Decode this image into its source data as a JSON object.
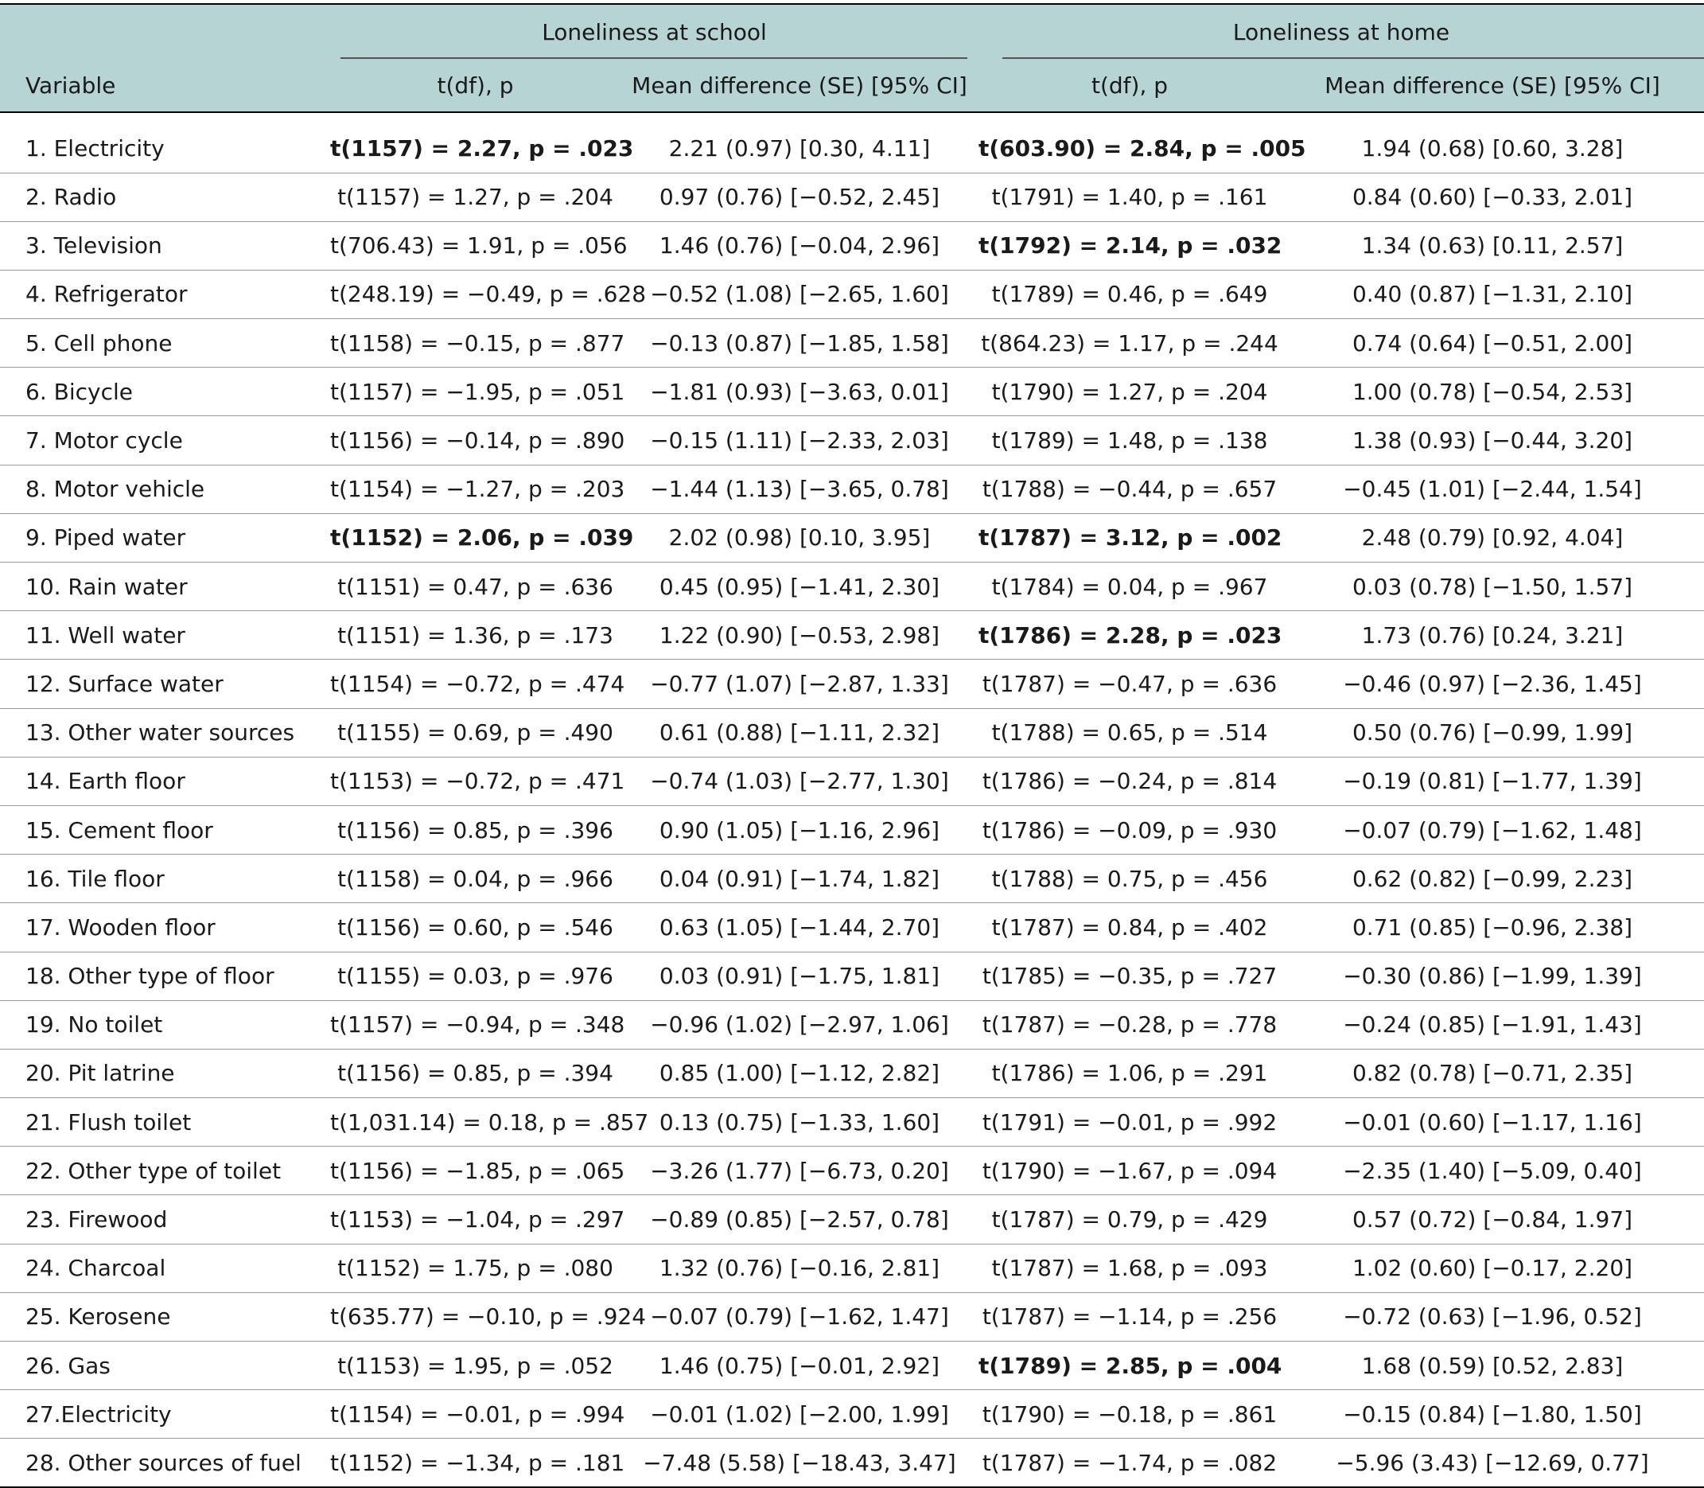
{
  "table": {
    "group_headers": {
      "school": "Loneliness at school",
      "home": "Loneliness at home"
    },
    "column_headers": {
      "variable": "Variable",
      "school_t": "t(df), p",
      "school_md": "Mean difference (SE) [95% CI]",
      "home_t": "t(df), p",
      "home_md": "Mean difference (SE) [95% CI]"
    },
    "rows": [
      {
        "variable": "1. Electricity",
        "school_t": "t(1157) = 2.27, p = .023",
        "school_md": "2.21 (0.97) [0.30, 4.11]",
        "home_t": "t(603.90) = 2.84, p = .005",
        "home_md": "1.94 (0.68) [0.60, 3.28]",
        "school_sig": true,
        "home_sig": true
      },
      {
        "variable": "2. Radio",
        "school_t": "t(1157) = 1.27, p = .204",
        "school_md": "0.97 (0.76) [−0.52, 2.45]",
        "home_t": "t(1791) = 1.40, p = .161",
        "home_md": "0.84 (0.60) [−0.33, 2.01]",
        "school_sig": false,
        "home_sig": false
      },
      {
        "variable": "3. Television",
        "school_t": "t(706.43) = 1.91, p = .056",
        "school_md": "1.46 (0.76) [−0.04, 2.96]",
        "home_t": "t(1792) = 2.14, p = .032",
        "home_md": "1.34 (0.63) [0.11, 2.57]",
        "school_sig": false,
        "home_sig": true
      },
      {
        "variable": "4. Refrigerator",
        "school_t": "t(248.19) = −0.49, p = .628",
        "school_md": "−0.52 (1.08) [−2.65, 1.60]",
        "home_t": "t(1789) = 0.46, p = .649",
        "home_md": "0.40 (0.87) [−1.31, 2.10]",
        "school_sig": false,
        "home_sig": false
      },
      {
        "variable": "5. Cell phone",
        "school_t": "t(1158) = −0.15, p = .877",
        "school_md": "−0.13 (0.87) [−1.85, 1.58]",
        "home_t": "t(864.23) = 1.17, p = .244",
        "home_md": "0.74 (0.64) [−0.51, 2.00]",
        "school_sig": false,
        "home_sig": false
      },
      {
        "variable": "6. Bicycle",
        "school_t": "t(1157) = −1.95, p = .051",
        "school_md": "−1.81 (0.93) [−3.63, 0.01]",
        "home_t": "t(1790) = 1.27, p = .204",
        "home_md": "1.00 (0.78) [−0.54, 2.53]",
        "school_sig": false,
        "home_sig": false
      },
      {
        "variable": "7. Motor cycle",
        "school_t": "t(1156) = −0.14, p = .890",
        "school_md": "−0.15 (1.11) [−2.33, 2.03]",
        "home_t": "t(1789) = 1.48, p = .138",
        "home_md": "1.38 (0.93) [−0.44, 3.20]",
        "school_sig": false,
        "home_sig": false
      },
      {
        "variable": "8. Motor vehicle",
        "school_t": "t(1154) = −1.27, p = .203",
        "school_md": "−1.44 (1.13) [−3.65, 0.78]",
        "home_t": "t(1788) = −0.44, p = .657",
        "home_md": "−0.45 (1.01) [−2.44, 1.54]",
        "school_sig": false,
        "home_sig": false
      },
      {
        "variable": "9. Piped water",
        "school_t": "t(1152) = 2.06, p = .039",
        "school_md": "2.02 (0.98) [0.10, 3.95]",
        "home_t": "t(1787) = 3.12, p = .002",
        "home_md": "2.48 (0.79) [0.92, 4.04]",
        "school_sig": true,
        "home_sig": true
      },
      {
        "variable": "10. Rain water",
        "school_t": "t(1151) = 0.47, p = .636",
        "school_md": "0.45 (0.95) [−1.41, 2.30]",
        "home_t": "t(1784) = 0.04, p = .967",
        "home_md": "0.03 (0.78) [−1.50, 1.57]",
        "school_sig": false,
        "home_sig": false
      },
      {
        "variable": "11. Well water",
        "school_t": "t(1151) = 1.36, p = .173",
        "school_md": "1.22 (0.90) [−0.53, 2.98]",
        "home_t": "t(1786) = 2.28, p = .023",
        "home_md": "1.73 (0.76) [0.24, 3.21]",
        "school_sig": false,
        "home_sig": true
      },
      {
        "variable": "12. Surface water",
        "school_t": "t(1154) = −0.72, p = .474",
        "school_md": "−0.77 (1.07) [−2.87, 1.33]",
        "home_t": "t(1787) = −0.47, p = .636",
        "home_md": "−0.46 (0.97) [−2.36, 1.45]",
        "school_sig": false,
        "home_sig": false
      },
      {
        "variable": "13. Other water sources",
        "school_t": "t(1155) = 0.69, p = .490",
        "school_md": "0.61 (0.88) [−1.11, 2.32]",
        "home_t": "t(1788) = 0.65, p = .514",
        "home_md": "0.50 (0.76) [−0.99, 1.99]",
        "school_sig": false,
        "home_sig": false
      },
      {
        "variable": "14. Earth floor",
        "school_t": "t(1153) = −0.72, p = .471",
        "school_md": "−0.74 (1.03) [−2.77, 1.30]",
        "home_t": "t(1786) = −0.24, p = .814",
        "home_md": "−0.19 (0.81) [−1.77, 1.39]",
        "school_sig": false,
        "home_sig": false
      },
      {
        "variable": "15. Cement floor",
        "school_t": "t(1156) = 0.85, p = .396",
        "school_md": "0.90 (1.05) [−1.16, 2.96]",
        "home_t": "t(1786) = −0.09, p = .930",
        "home_md": "−0.07 (0.79) [−1.62, 1.48]",
        "school_sig": false,
        "home_sig": false
      },
      {
        "variable": "16. Tile floor",
        "school_t": "t(1158) = 0.04, p = .966",
        "school_md": "0.04 (0.91) [−1.74, 1.82]",
        "home_t": "t(1788) = 0.75, p = .456",
        "home_md": "0.62 (0.82) [−0.99, 2.23]",
        "school_sig": false,
        "home_sig": false
      },
      {
        "variable": "17. Wooden floor",
        "school_t": "t(1156) = 0.60, p = .546",
        "school_md": "0.63 (1.05) [−1.44, 2.70]",
        "home_t": "t(1787) = 0.84, p = .402",
        "home_md": "0.71 (0.85) [−0.96, 2.38]",
        "school_sig": false,
        "home_sig": false
      },
      {
        "variable": "18. Other type of floor",
        "school_t": "t(1155) = 0.03, p = .976",
        "school_md": "0.03 (0.91) [−1.75, 1.81]",
        "home_t": "t(1785) = −0.35, p = .727",
        "home_md": "−0.30 (0.86) [−1.99, 1.39]",
        "school_sig": false,
        "home_sig": false
      },
      {
        "variable": "19. No toilet",
        "school_t": "t(1157) = −0.94, p = .348",
        "school_md": "−0.96 (1.02) [−2.97, 1.06]",
        "home_t": "t(1787) = −0.28, p = .778",
        "home_md": "−0.24 (0.85) [−1.91, 1.43]",
        "school_sig": false,
        "home_sig": false
      },
      {
        "variable": "20. Pit latrine",
        "school_t": "t(1156) = 0.85, p = .394",
        "school_md": "0.85 (1.00) [−1.12, 2.82]",
        "home_t": "t(1786) = 1.06, p = .291",
        "home_md": "0.82 (0.78) [−0.71, 2.35]",
        "school_sig": false,
        "home_sig": false
      },
      {
        "variable": "21. Flush toilet",
        "school_t": "t(1,031.14) = 0.18, p = .857",
        "school_md": "0.13 (0.75) [−1.33, 1.60]",
        "home_t": "t(1791) = −0.01, p = .992",
        "home_md": "−0.01 (0.60) [−1.17, 1.16]",
        "school_sig": false,
        "home_sig": false
      },
      {
        "variable": "22. Other type of toilet",
        "school_t": "t(1156) = −1.85, p = .065",
        "school_md": "−3.26 (1.77) [−6.73, 0.20]",
        "home_t": "t(1790) = −1.67, p = .094",
        "home_md": "−2.35 (1.40) [−5.09, 0.40]",
        "school_sig": false,
        "home_sig": false
      },
      {
        "variable": "23. Firewood",
        "school_t": "t(1153) = −1.04, p = .297",
        "school_md": "−0.89 (0.85) [−2.57, 0.78]",
        "home_t": "t(1787) = 0.79, p = .429",
        "home_md": "0.57 (0.72) [−0.84, 1.97]",
        "school_sig": false,
        "home_sig": false
      },
      {
        "variable": "24. Charcoal",
        "school_t": "t(1152) = 1.75, p = .080",
        "school_md": "1.32 (0.76) [−0.16, 2.81]",
        "home_t": "t(1787) = 1.68, p = .093",
        "home_md": "1.02 (0.60) [−0.17, 2.20]",
        "school_sig": false,
        "home_sig": false
      },
      {
        "variable": "25. Kerosene",
        "school_t": "t(635.77) = −0.10, p = .924",
        "school_md": "−0.07 (0.79) [−1.62, 1.47]",
        "home_t": "t(1787) = −1.14, p = .256",
        "home_md": "−0.72 (0.63) [−1.96, 0.52]",
        "school_sig": false,
        "home_sig": false
      },
      {
        "variable": "26. Gas",
        "school_t": "t(1153) = 1.95, p = .052",
        "school_md": "1.46 (0.75) [−0.01, 2.92]",
        "home_t": "t(1789) = 2.85, p = .004",
        "home_md": "1.68 (0.59) [0.52, 2.83]",
        "school_sig": false,
        "home_sig": true
      },
      {
        "variable": "27.Electricity",
        "school_t": "t(1154) = −0.01, p = .994",
        "school_md": "−0.01 (1.02) [−2.00, 1.99]",
        "home_t": "t(1790) = −0.18, p = .861",
        "home_md": "−0.15 (0.84) [−1.80, 1.50]",
        "school_sig": false,
        "home_sig": false
      },
      {
        "variable": "28. Other sources of fuel",
        "school_t": "t(1152) = −1.34, p = .181",
        "school_md": "−7.48 (5.58) [−18.43, 3.47]",
        "home_t": "t(1787) = −1.74, p = .082",
        "home_md": "−5.96 (3.43) [−12.69, 0.77]",
        "school_sig": false,
        "home_sig": false
      }
    ]
  }
}
